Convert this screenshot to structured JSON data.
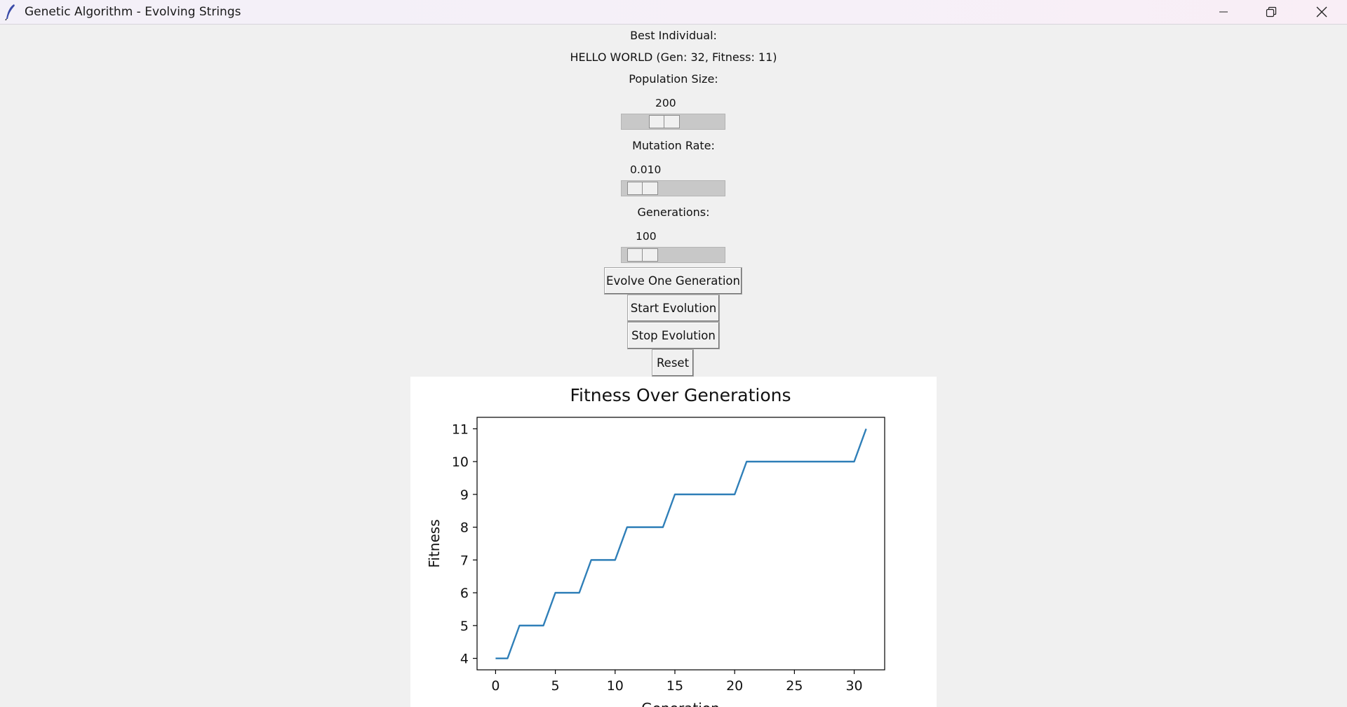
{
  "window": {
    "title": "Genetic Algorithm - Evolving Strings",
    "icon": "feather-icon",
    "controls": [
      "minimize-icon",
      "restore-icon",
      "close-icon"
    ]
  },
  "best_individual": {
    "label": "Best Individual:",
    "value": "HELLO WORLD (Gen: 32, Fitness: 11)"
  },
  "population": {
    "label": "Population Size:",
    "value": "200"
  },
  "mutation": {
    "label": "Mutation Rate:",
    "value": "0.010"
  },
  "generations": {
    "label": "Generations:",
    "value": "100"
  },
  "buttons": {
    "evolve_one": "Evolve One Generation",
    "start": "Start Evolution",
    "stop": "Stop Evolution",
    "reset": "Reset"
  },
  "colors": {
    "line": "#2f7fb8",
    "background": "#f0f0f0"
  },
  "chart_data": {
    "type": "line",
    "title": "Fitness Over Generations",
    "xlabel": "Generation",
    "ylabel": "Fitness",
    "x": [
      0,
      1,
      2,
      3,
      4,
      5,
      6,
      7,
      8,
      9,
      10,
      11,
      12,
      13,
      14,
      15,
      16,
      17,
      18,
      19,
      20,
      21,
      22,
      23,
      24,
      25,
      26,
      27,
      28,
      29,
      30,
      31
    ],
    "y": [
      4,
      4,
      5,
      5,
      5,
      6,
      6,
      6,
      7,
      7,
      7,
      8,
      8,
      8,
      8,
      9,
      9,
      9,
      9,
      9,
      9,
      10,
      10,
      10,
      10,
      10,
      10,
      10,
      10,
      10,
      10,
      11
    ],
    "xticks": [
      "0",
      "5",
      "10",
      "15",
      "20",
      "25",
      "30"
    ],
    "yticks": [
      "4",
      "5",
      "6",
      "7",
      "8",
      "9",
      "10",
      "11"
    ],
    "xlim": [
      -1.55,
      32.55
    ],
    "ylim": [
      3.65,
      11.35
    ],
    "grid": false,
    "legend": "none"
  }
}
